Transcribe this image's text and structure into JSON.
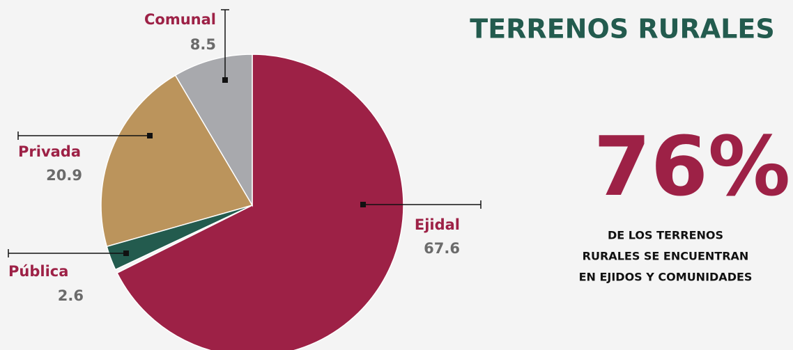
{
  "chart_data": {
    "type": "pie",
    "title": "TERRENOS RURALES",
    "highlight": "76%",
    "note": [
      "DE LOS TERRENOS",
      "RURALES SE ENCUENTRAN",
      "EN EJIDOS Y COMUNIDADES"
    ],
    "categories": [
      "Ejidal",
      "Pública",
      "Privada",
      "Comunal"
    ],
    "values": [
      67.6,
      2.6,
      20.9,
      8.5
    ],
    "colors": [
      "#9d2146",
      "#235b4e",
      "#bb945c",
      "#a8a9ad"
    ]
  }
}
